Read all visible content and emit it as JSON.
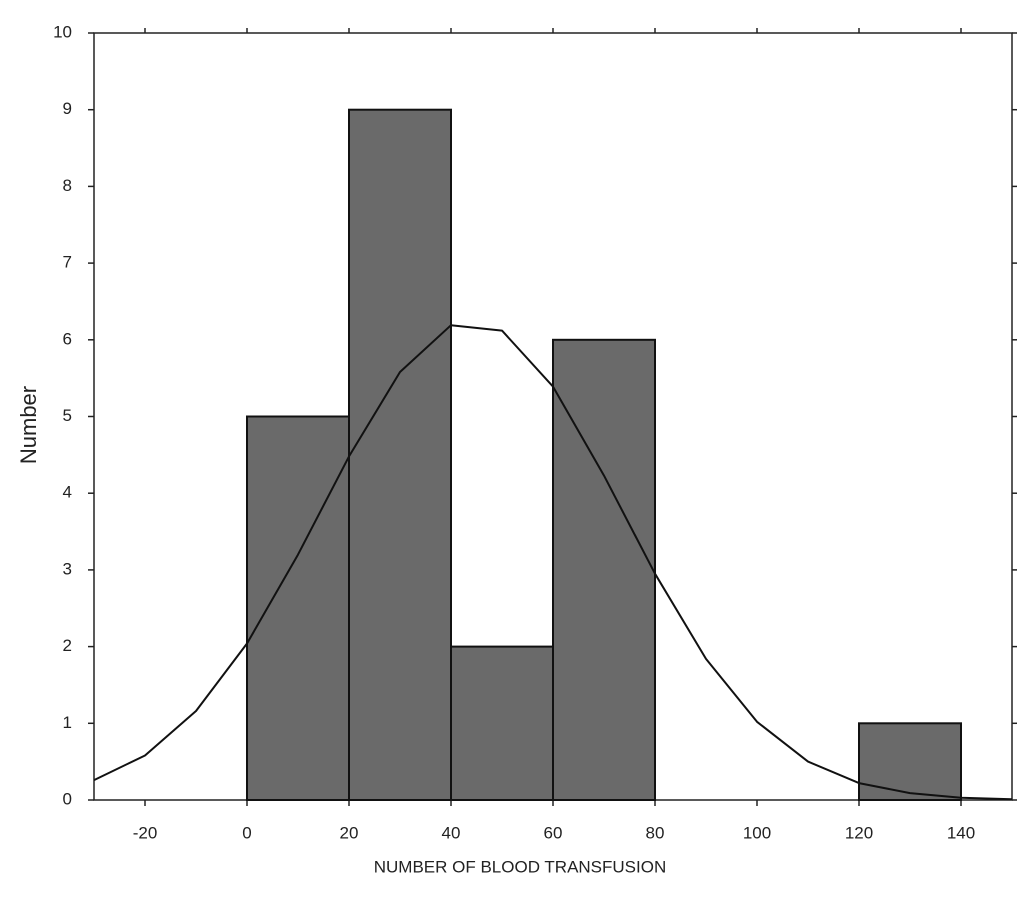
{
  "chart_data": {
    "type": "histogram",
    "xlabel": "NUMBER OF BLOOD TRANSFUSION",
    "ylabel": "Number",
    "bins": [
      0,
      20,
      40,
      60,
      80,
      100,
      120,
      140
    ],
    "values": [
      5,
      9,
      2,
      6,
      0,
      0,
      1
    ],
    "color": "#6a6a6a",
    "curve": {
      "x": [
        -30,
        -20,
        -10,
        0,
        10,
        20,
        30,
        40,
        50,
        60,
        70,
        80,
        90,
        100,
        110,
        120,
        130,
        140,
        150
      ],
      "values": [
        0.26,
        0.58,
        1.16,
        2.04,
        3.2,
        4.48,
        5.58,
        6.19,
        6.12,
        5.39,
        4.23,
        2.95,
        1.84,
        1.02,
        0.5,
        0.22,
        0.09,
        0.03,
        0.01
      ]
    },
    "xlim": [
      -30,
      150
    ],
    "ylim": [
      0,
      10
    ],
    "xticks": [
      -20,
      0,
      20,
      40,
      60,
      80,
      100,
      120,
      140
    ],
    "yticks": [
      0,
      1,
      2,
      3,
      4,
      5,
      6,
      7,
      8,
      9,
      10
    ]
  }
}
